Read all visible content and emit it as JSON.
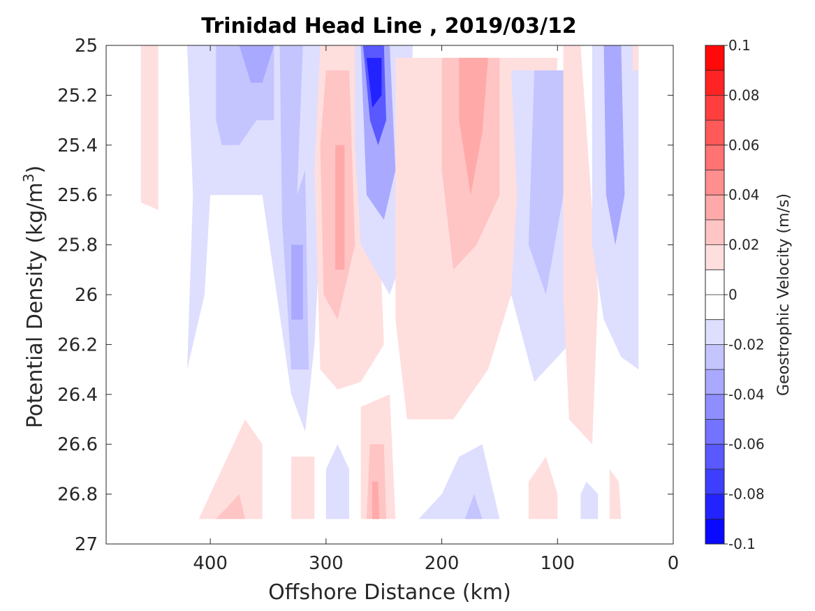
{
  "chart_data": {
    "type": "contour",
    "title": "Trinidad Head Line , 2019/03/12",
    "xlabel": "Offshore Distance (km)",
    "ylabel_main": "Potential Density (kg/m",
    "ylabel_sup": "3",
    "ylabel_close": ")",
    "xlim": [
      490,
      0
    ],
    "ylim": [
      25,
      27
    ],
    "y_inverted": true,
    "x_reversed": true,
    "grid": false,
    "x_ticks": [
      400,
      300,
      200,
      100,
      0
    ],
    "y_ticks": [
      25,
      25.2,
      25.4,
      25.6,
      25.8,
      26,
      26.2,
      26.4,
      26.6,
      26.8,
      27
    ],
    "y_tick_labels": [
      "25",
      "25.2",
      "25.4",
      "25.6",
      "25.8",
      "26",
      "26.2",
      "26.4",
      "26.6",
      "26.8",
      "27"
    ],
    "colorbar": {
      "label": "Geostrophic Velocity (m/s)",
      "range": [
        -0.1,
        0.1
      ],
      "ticks": [
        0.1,
        0.08,
        0.06,
        0.04,
        0.02,
        0,
        -0.02,
        -0.04,
        -0.06,
        -0.08,
        -0.1
      ],
      "tick_labels": [
        "0.1",
        "0.08",
        "0.06",
        "0.04",
        "0.02",
        "0",
        "-0.02",
        "-0.04",
        "-0.06",
        "-0.08",
        "-0.1"
      ],
      "colors_positive": [
        "#ffdede",
        "#ffc4c4",
        "#ffa9a9",
        "#ff8e8e",
        "#ff7373",
        "#ff5959",
        "#ff3e3e",
        "#ff2323",
        "#ff0909"
      ],
      "colors_negative": [
        "#dedeff",
        "#c4c4ff",
        "#a9a9ff",
        "#8e8eff",
        "#7373ff",
        "#5959ff",
        "#3e3eff",
        "#2323ff",
        "#0909ff"
      ]
    },
    "features": [
      {
        "sign": "pos",
        "level": 1,
        "points": [
          [
            460,
            25
          ],
          [
            445,
            25
          ],
          [
            445,
            25.66
          ],
          [
            460,
            25.63
          ]
        ]
      },
      {
        "sign": "neg",
        "level": 1,
        "points": [
          [
            420,
            25
          ],
          [
            300,
            25
          ],
          [
            300,
            25.3
          ],
          [
            310,
            26.2
          ],
          [
            318,
            26.55
          ],
          [
            330,
            26.4
          ],
          [
            355,
            25.6
          ],
          [
            400,
            25.6
          ],
          [
            405,
            26
          ],
          [
            420,
            26.3
          ],
          [
            415,
            25.6
          ]
        ]
      },
      {
        "sign": "neg",
        "level": 2,
        "points": [
          [
            395,
            25
          ],
          [
            345,
            25
          ],
          [
            345,
            25.3
          ],
          [
            360,
            25.3
          ],
          [
            375,
            25.4
          ],
          [
            390,
            25.4
          ],
          [
            395,
            25.3
          ]
        ]
      },
      {
        "sign": "neg",
        "level": 3,
        "points": [
          [
            375,
            25
          ],
          [
            345,
            25
          ],
          [
            355,
            25.15
          ],
          [
            365,
            25.15
          ]
        ]
      },
      {
        "sign": "neg",
        "level": 2,
        "points": [
          [
            340,
            25
          ],
          [
            320,
            25
          ],
          [
            325,
            25.6
          ],
          [
            318,
            25.5
          ],
          [
            315,
            26.3
          ],
          [
            330,
            26.3
          ],
          [
            338,
            25.7
          ]
        ]
      },
      {
        "sign": "neg",
        "level": 3,
        "points": [
          [
            330,
            25.8
          ],
          [
            320,
            25.8
          ],
          [
            320,
            26.1
          ],
          [
            330,
            26.1
          ]
        ]
      },
      {
        "sign": "pos",
        "level": 1,
        "points": [
          [
            305,
            25
          ],
          [
            260,
            25
          ],
          [
            250,
            26.2
          ],
          [
            270,
            26.35
          ],
          [
            290,
            26.38
          ],
          [
            305,
            26.3
          ],
          [
            310,
            25.5
          ]
        ]
      },
      {
        "sign": "pos",
        "level": 2,
        "points": [
          [
            300,
            25.1
          ],
          [
            280,
            25.1
          ],
          [
            275,
            25.8
          ],
          [
            290,
            26.1
          ],
          [
            302,
            26.0
          ],
          [
            305,
            25.4
          ]
        ]
      },
      {
        "sign": "pos",
        "level": 3,
        "points": [
          [
            292,
            25.4
          ],
          [
            284,
            25.4
          ],
          [
            284,
            25.9
          ],
          [
            292,
            25.9
          ]
        ]
      },
      {
        "sign": "neg",
        "level": 1,
        "points": [
          [
            275,
            25
          ],
          [
            225,
            25
          ],
          [
            230,
            25.8
          ],
          [
            245,
            26.0
          ],
          [
            270,
            25.8
          ],
          [
            275,
            25.4
          ]
        ]
      },
      {
        "sign": "neg",
        "level": 3,
        "points": [
          [
            270,
            25
          ],
          [
            245,
            25
          ],
          [
            240,
            25.5
          ],
          [
            250,
            25.7
          ],
          [
            265,
            25.6
          ]
        ]
      },
      {
        "sign": "neg",
        "level": 6,
        "points": [
          [
            268,
            25
          ],
          [
            250,
            25
          ],
          [
            248,
            25.3
          ],
          [
            255,
            25.4
          ],
          [
            262,
            25.3
          ]
        ]
      },
      {
        "sign": "neg",
        "level": 8,
        "points": [
          [
            265,
            25.05
          ],
          [
            252,
            25.05
          ],
          [
            252,
            25.2
          ],
          [
            260,
            25.25
          ]
        ]
      },
      {
        "sign": "pos",
        "level": 1,
        "points": [
          [
            240,
            25.05
          ],
          [
            100,
            25.05
          ],
          [
            105,
            25.5
          ],
          [
            140,
            26.0
          ],
          [
            160,
            26.3
          ],
          [
            190,
            26.5
          ],
          [
            230,
            26.5
          ],
          [
            240,
            26.1
          ]
        ]
      },
      {
        "sign": "pos",
        "level": 2,
        "points": [
          [
            200,
            25.05
          ],
          [
            150,
            25.05
          ],
          [
            150,
            25.6
          ],
          [
            170,
            25.8
          ],
          [
            190,
            25.9
          ],
          [
            200,
            25.5
          ]
        ]
      },
      {
        "sign": "pos",
        "level": 3,
        "points": [
          [
            185,
            25.05
          ],
          [
            160,
            25.05
          ],
          [
            165,
            25.35
          ],
          [
            175,
            25.6
          ],
          [
            185,
            25.3
          ]
        ]
      },
      {
        "sign": "neg",
        "level": 1,
        "points": [
          [
            140,
            25.1
          ],
          [
            90,
            25.1
          ],
          [
            80,
            25.5
          ],
          [
            90,
            26.2
          ],
          [
            120,
            26.35
          ],
          [
            140,
            26.0
          ],
          [
            135,
            25.6
          ]
        ]
      },
      {
        "sign": "neg",
        "level": 2,
        "points": [
          [
            120,
            25.1
          ],
          [
            95,
            25.1
          ],
          [
            95,
            25.6
          ],
          [
            110,
            26.0
          ],
          [
            125,
            25.8
          ]
        ]
      },
      {
        "sign": "pos",
        "level": 1,
        "points": [
          [
            95,
            25
          ],
          [
            80,
            25
          ],
          [
            65,
            26.0
          ],
          [
            70,
            26.6
          ],
          [
            90,
            26.5
          ],
          [
            95,
            26.0
          ]
        ]
      },
      {
        "sign": "neg",
        "level": 1,
        "points": [
          [
            70,
            25
          ],
          [
            30,
            25
          ],
          [
            30,
            26.3
          ],
          [
            45,
            26.25
          ],
          [
            60,
            26.1
          ],
          [
            70,
            25.8
          ]
        ]
      },
      {
        "sign": "neg",
        "level": 3,
        "points": [
          [
            60,
            25
          ],
          [
            45,
            25
          ],
          [
            42,
            25.6
          ],
          [
            50,
            25.8
          ],
          [
            58,
            25.6
          ]
        ]
      },
      {
        "sign": "pos",
        "level": 1,
        "points": [
          [
            35,
            25
          ],
          [
            30,
            25
          ],
          [
            30,
            25.1
          ],
          [
            35,
            25.1
          ]
        ]
      },
      {
        "sign": "pos",
        "level": 1,
        "points": [
          [
            410,
            26.9
          ],
          [
            355,
            26.9
          ],
          [
            355,
            26.6
          ],
          [
            370,
            26.5
          ],
          [
            395,
            26.75
          ]
        ]
      },
      {
        "sign": "pos",
        "level": 2,
        "points": [
          [
            395,
            26.9
          ],
          [
            370,
            26.9
          ],
          [
            375,
            26.8
          ],
          [
            385,
            26.85
          ]
        ]
      },
      {
        "sign": "pos",
        "level": 1,
        "points": [
          [
            330,
            26.9
          ],
          [
            310,
            26.9
          ],
          [
            310,
            26.65
          ],
          [
            330,
            26.65
          ]
        ]
      },
      {
        "sign": "neg",
        "level": 1,
        "points": [
          [
            300,
            26.9
          ],
          [
            280,
            26.9
          ],
          [
            280,
            26.7
          ],
          [
            290,
            26.6
          ],
          [
            300,
            26.7
          ]
        ]
      },
      {
        "sign": "pos",
        "level": 1,
        "points": [
          [
            270,
            26.9
          ],
          [
            240,
            26.9
          ],
          [
            245,
            26.4
          ],
          [
            270,
            26.45
          ]
        ]
      },
      {
        "sign": "pos",
        "level": 2,
        "points": [
          [
            265,
            26.9
          ],
          [
            248,
            26.9
          ],
          [
            250,
            26.6
          ],
          [
            262,
            26.6
          ]
        ]
      },
      {
        "sign": "pos",
        "level": 3,
        "points": [
          [
            260,
            26.9
          ],
          [
            254,
            26.9
          ],
          [
            255,
            26.75
          ],
          [
            260,
            26.75
          ]
        ]
      },
      {
        "sign": "neg",
        "level": 1,
        "points": [
          [
            220,
            26.9
          ],
          [
            150,
            26.9
          ],
          [
            165,
            26.6
          ],
          [
            185,
            26.65
          ],
          [
            200,
            26.8
          ]
        ]
      },
      {
        "sign": "neg",
        "level": 2,
        "points": [
          [
            180,
            26.9
          ],
          [
            165,
            26.9
          ],
          [
            172,
            26.8
          ]
        ]
      },
      {
        "sign": "pos",
        "level": 1,
        "points": [
          [
            125,
            26.9
          ],
          [
            100,
            26.9
          ],
          [
            100,
            26.8
          ],
          [
            110,
            26.65
          ],
          [
            125,
            26.75
          ]
        ]
      },
      {
        "sign": "neg",
        "level": 1,
        "points": [
          [
            80,
            26.9
          ],
          [
            65,
            26.9
          ],
          [
            65,
            26.8
          ],
          [
            75,
            26.75
          ],
          [
            80,
            26.8
          ]
        ]
      },
      {
        "sign": "pos",
        "level": 1,
        "points": [
          [
            55,
            26.9
          ],
          [
            45,
            26.9
          ],
          [
            47,
            26.75
          ],
          [
            55,
            26.7
          ]
        ]
      }
    ]
  }
}
